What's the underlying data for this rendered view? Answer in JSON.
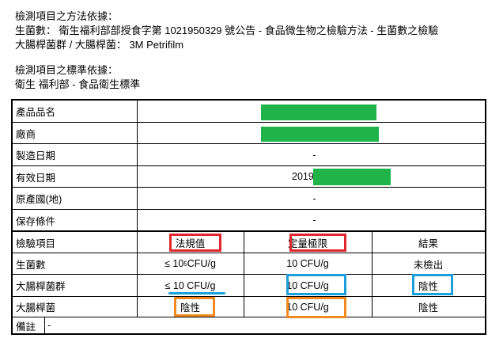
{
  "header": {
    "method_title": "檢測項目之方法依據：",
    "method_line1": "生菌數：  衛生福利部部授食字第 1021950329 號公告 - 食品微生物之檢驗方法 - 生菌數之檢驗",
    "method_line2": "大腸桿菌群 / 大腸桿菌：  3M Petrifilm",
    "standard_title": "檢測項目之標準依據：",
    "standard_line": "衛生 福利部 - 食品衛生標準"
  },
  "info_rows": [
    {
      "label": "產品品名",
      "value": ""
    },
    {
      "label": "廠商",
      "value": ""
    },
    {
      "label": "製造日期",
      "value": "-"
    },
    {
      "label": "有效日期",
      "value": "2019"
    },
    {
      "label": "原產國(地)",
      "value": "-"
    },
    {
      "label": "保存條件",
      "value": "-"
    }
  ],
  "test_header": {
    "item": "檢驗項目",
    "limit": "法規值",
    "quant": "定量極限",
    "result": "結果"
  },
  "test_rows": [
    {
      "item": "生菌數",
      "limit_prefix": "≤ 10",
      "limit_sup": "5",
      "limit_suffix": " CFU/g",
      "quant": "10 CFU/g",
      "result": "未檢出"
    },
    {
      "item": "大腸桿菌群",
      "limit": "≤ 10 CFU/g",
      "quant": "10 CFU/g",
      "result": "陰性"
    },
    {
      "item": "大腸桿菌",
      "limit": "陰性",
      "quant": "10 CFU/g",
      "result": "陰性"
    }
  ],
  "remark": {
    "label": "備註",
    "value": "-"
  },
  "colors": {
    "redacted": "#1fb34a",
    "highlight_red": "#e0262e",
    "highlight_blue": "#1a9fdc",
    "highlight_orange": "#f28a1f"
  }
}
